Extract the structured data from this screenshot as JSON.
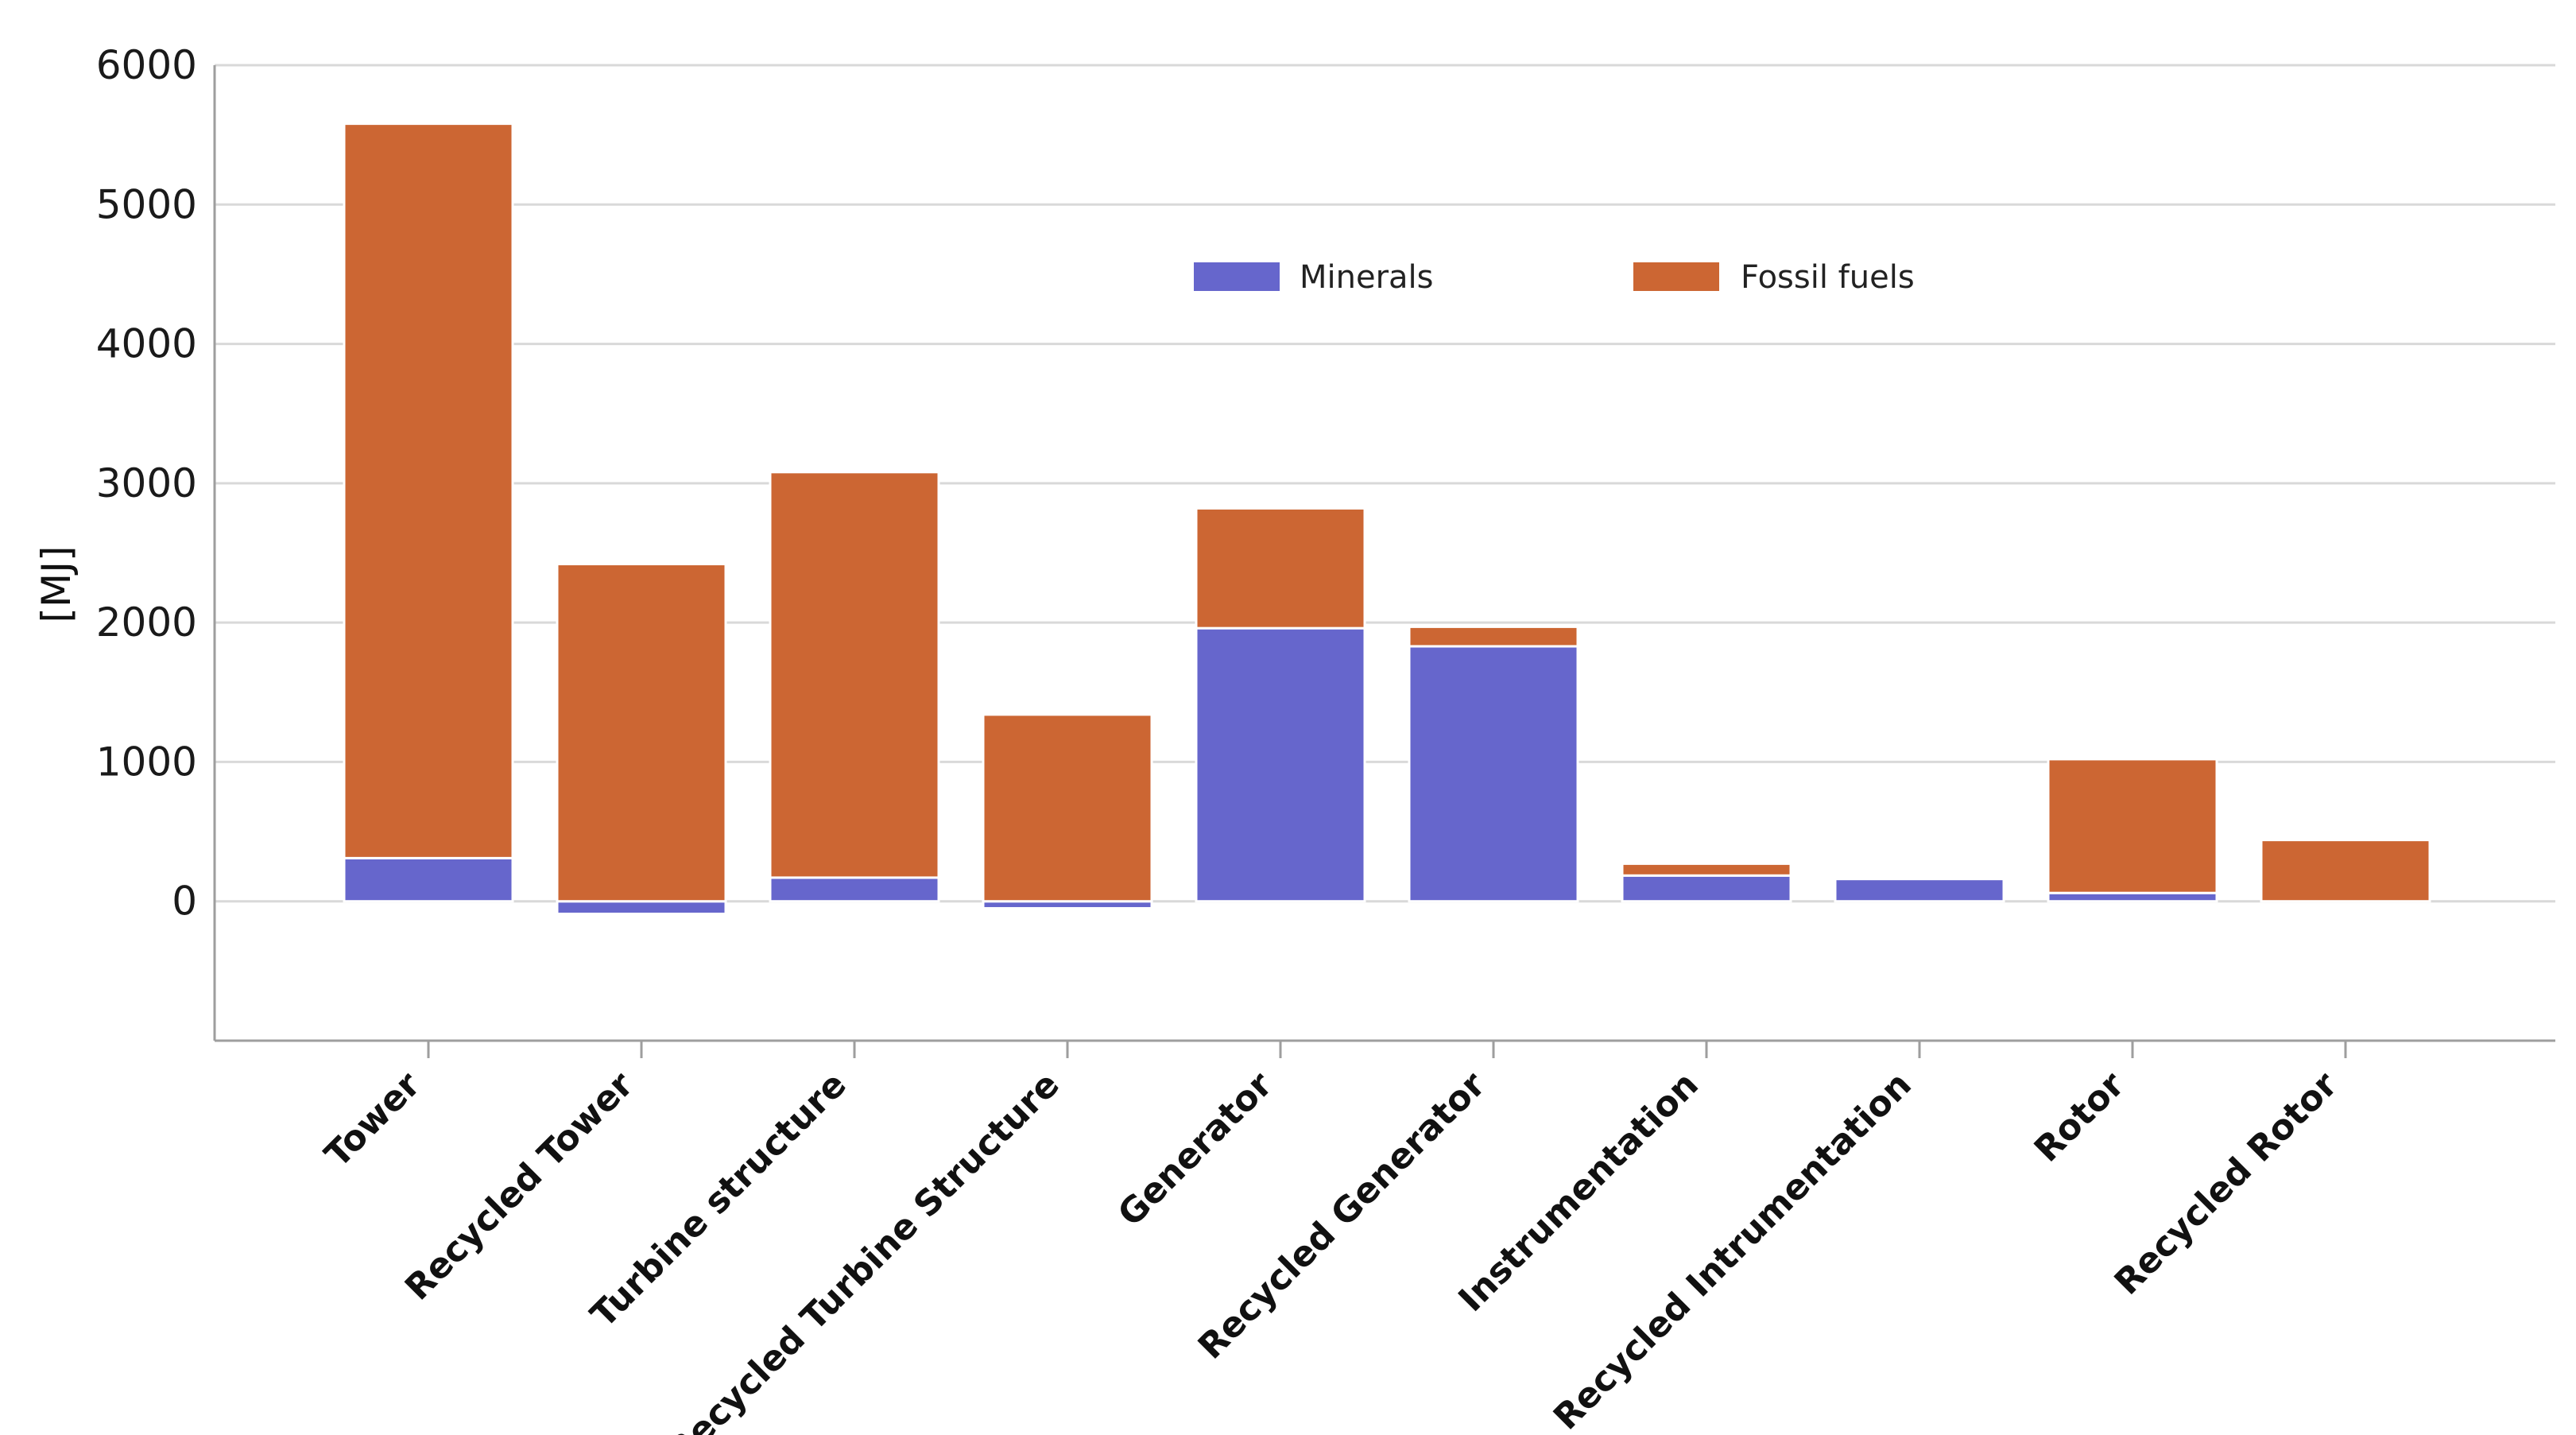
{
  "chart_data": {
    "type": "bar",
    "stacked": true,
    "title": "",
    "xlabel": "",
    "ylabel": "[MJ]",
    "ylim": [
      -1000,
      6000
    ],
    "yticks": [
      0,
      1000,
      2000,
      3000,
      4000,
      5000,
      6000
    ],
    "grid": true,
    "legend_position": "top-center",
    "categories": [
      "Tower",
      "Recycled Tower",
      "Turbine structure",
      "Recycled Turbine Structure",
      "Generator",
      "Recycled Generator",
      "Instrumentation",
      "Recycled Intrumentation",
      "Rotor",
      "Recycled Rotor"
    ],
    "series": [
      {
        "name": "Minerals",
        "color": "#6666cc",
        "values": [
          310,
          -90,
          170,
          -50,
          1960,
          1830,
          185,
          160,
          60,
          0
        ]
      },
      {
        "name": "Fossil fuels",
        "color": "#cc6633",
        "values": [
          5270,
          2420,
          2910,
          1340,
          860,
          140,
          85,
          0,
          960,
          440
        ]
      }
    ]
  }
}
